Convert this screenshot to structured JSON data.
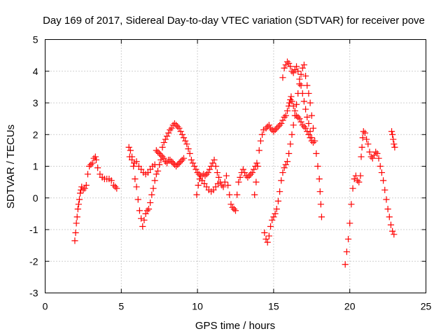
{
  "chart_data": {
    "type": "scatter",
    "title": "Day 169 of 2017, Sidereal Day-to-day VTEC variation (SDTVAR) for receiver pove",
    "xlabel": "GPS time / hours",
    "ylabel": "SDTVAR / TECUs",
    "xlim": [
      0,
      25
    ],
    "ylim": [
      -3,
      5
    ],
    "xticks": [
      0,
      5,
      10,
      15,
      20,
      25
    ],
    "yticks": [
      -3,
      -2,
      -1,
      0,
      1,
      2,
      3,
      4,
      5
    ],
    "grid": true,
    "marker": "plus",
    "color": "#ff0000",
    "series": [
      {
        "points": [
          [
            1.95,
            -1.35
          ],
          [
            2.0,
            -1.1
          ],
          [
            2.05,
            -0.8
          ],
          [
            2.1,
            -0.6
          ],
          [
            2.15,
            -0.35
          ],
          [
            2.2,
            -0.2
          ],
          [
            2.25,
            -0.05
          ],
          [
            2.3,
            0.15
          ],
          [
            2.35,
            0.25
          ],
          [
            2.4,
            0.35
          ],
          [
            2.5,
            0.25
          ],
          [
            2.6,
            0.3
          ],
          [
            2.7,
            0.4
          ],
          [
            2.8,
            0.75
          ],
          [
            2.9,
            1.0
          ],
          [
            3.0,
            1.05
          ],
          [
            3.1,
            1.1
          ],
          [
            3.2,
            1.25
          ],
          [
            3.3,
            1.3
          ],
          [
            3.35,
            1.2
          ],
          [
            3.45,
            0.95
          ],
          [
            3.6,
            0.75
          ],
          [
            3.75,
            0.65
          ],
          [
            3.9,
            0.6
          ],
          [
            4.05,
            0.6
          ],
          [
            4.2,
            0.6
          ],
          [
            4.35,
            0.55
          ],
          [
            4.5,
            0.4
          ],
          [
            4.6,
            0.35
          ],
          [
            4.7,
            0.3
          ],
          [
            5.5,
            1.6
          ],
          [
            5.6,
            1.5
          ],
          [
            5.7,
            1.3
          ],
          [
            5.8,
            1.0
          ],
          [
            5.9,
            0.6
          ],
          [
            6.0,
            0.35
          ],
          [
            6.1,
            -0.05
          ],
          [
            6.2,
            -0.4
          ],
          [
            6.3,
            -0.65
          ],
          [
            6.4,
            -0.9
          ],
          [
            6.5,
            -0.7
          ],
          [
            6.6,
            -0.5
          ],
          [
            6.7,
            -0.4
          ],
          [
            6.8,
            -0.35
          ],
          [
            6.9,
            -0.15
          ],
          [
            7.0,
            0.1
          ],
          [
            7.1,
            0.3
          ],
          [
            7.2,
            0.55
          ],
          [
            7.3,
            0.75
          ],
          [
            7.4,
            0.85
          ],
          [
            7.5,
            1.05
          ],
          [
            7.6,
            1.2
          ],
          [
            7.7,
            1.3
          ],
          [
            7.8,
            1.25
          ],
          [
            7.9,
            1.15
          ],
          [
            8.0,
            1.1
          ],
          [
            8.1,
            1.2
          ],
          [
            8.2,
            1.2
          ],
          [
            8.3,
            1.15
          ],
          [
            8.4,
            1.1
          ],
          [
            8.5,
            1.05
          ],
          [
            8.6,
            1.0
          ],
          [
            8.7,
            1.05
          ],
          [
            8.8,
            1.1
          ],
          [
            8.9,
            1.15
          ],
          [
            9.0,
            1.2
          ],
          [
            9.1,
            1.25
          ],
          [
            5.55,
            1.3
          ],
          [
            5.7,
            1.2
          ],
          [
            5.85,
            1.1
          ],
          [
            6.0,
            1.15
          ],
          [
            6.15,
            1.0
          ],
          [
            6.3,
            0.9
          ],
          [
            6.45,
            0.8
          ],
          [
            6.6,
            0.75
          ],
          [
            6.75,
            0.8
          ],
          [
            6.9,
            0.9
          ],
          [
            7.05,
            1.0
          ],
          [
            7.2,
            1.05
          ],
          [
            7.3,
            1.5
          ],
          [
            7.4,
            1.45
          ],
          [
            7.5,
            1.4
          ],
          [
            7.6,
            1.35
          ],
          [
            7.7,
            1.6
          ],
          [
            7.8,
            1.75
          ],
          [
            7.9,
            1.85
          ],
          [
            8.0,
            1.95
          ],
          [
            8.1,
            2.05
          ],
          [
            8.2,
            2.15
          ],
          [
            8.3,
            2.2
          ],
          [
            8.4,
            2.3
          ],
          [
            8.5,
            2.35
          ],
          [
            8.6,
            2.3
          ],
          [
            8.7,
            2.25
          ],
          [
            8.8,
            2.2
          ],
          [
            8.9,
            2.1
          ],
          [
            9.0,
            2.0
          ],
          [
            9.1,
            1.9
          ],
          [
            9.2,
            1.8
          ],
          [
            9.3,
            1.7
          ],
          [
            9.4,
            1.55
          ],
          [
            9.5,
            1.4
          ],
          [
            9.6,
            1.2
          ],
          [
            9.7,
            1.1
          ],
          [
            9.8,
            1.0
          ],
          [
            9.9,
            0.9
          ],
          [
            10.0,
            0.8
          ],
          [
            10.1,
            0.75
          ],
          [
            10.2,
            0.7
          ],
          [
            10.3,
            0.7
          ],
          [
            10.4,
            0.75
          ],
          [
            10.5,
            0.7
          ],
          [
            10.6,
            0.75
          ],
          [
            10.7,
            0.8
          ],
          [
            10.8,
            0.9
          ],
          [
            10.9,
            1.0
          ],
          [
            11.0,
            1.1
          ],
          [
            11.1,
            1.2
          ],
          [
            11.2,
            1.0
          ],
          [
            11.3,
            0.8
          ],
          [
            11.4,
            0.65
          ],
          [
            9.95,
            0.1
          ],
          [
            10.05,
            0.4
          ],
          [
            10.15,
            0.6
          ],
          [
            10.3,
            0.55
          ],
          [
            10.45,
            0.45
          ],
          [
            10.6,
            0.35
          ],
          [
            10.75,
            0.25
          ],
          [
            10.9,
            0.2
          ],
          [
            11.05,
            0.25
          ],
          [
            11.2,
            0.35
          ],
          [
            11.35,
            0.45
          ],
          [
            11.5,
            0.5
          ],
          [
            11.6,
            0.4
          ],
          [
            11.7,
            0.35
          ],
          [
            11.8,
            0.5
          ],
          [
            11.9,
            0.7
          ],
          [
            12.0,
            0.4
          ],
          [
            12.1,
            0.1
          ],
          [
            12.2,
            -0.2
          ],
          [
            12.3,
            -0.3
          ],
          [
            12.4,
            -0.35
          ],
          [
            12.5,
            -0.4
          ],
          [
            12.6,
            0.1
          ],
          [
            12.7,
            0.5
          ],
          [
            12.8,
            0.65
          ],
          [
            12.9,
            0.8
          ],
          [
            13.0,
            0.9
          ],
          [
            13.1,
            0.8
          ],
          [
            13.2,
            0.7
          ],
          [
            13.3,
            0.65
          ],
          [
            13.4,
            0.7
          ],
          [
            13.5,
            0.75
          ],
          [
            13.6,
            0.8
          ],
          [
            13.7,
            0.9
          ],
          [
            13.8,
            1.0
          ],
          [
            13.9,
            1.1
          ],
          [
            13.75,
            0.1
          ],
          [
            13.85,
            0.5
          ],
          [
            13.95,
            1.0
          ],
          [
            14.05,
            1.5
          ],
          [
            14.15,
            1.8
          ],
          [
            14.25,
            2.0
          ],
          [
            14.35,
            2.15
          ],
          [
            14.5,
            2.2
          ],
          [
            14.6,
            2.25
          ],
          [
            14.7,
            2.3
          ],
          [
            14.8,
            2.2
          ],
          [
            14.9,
            2.15
          ],
          [
            15.0,
            2.1
          ],
          [
            15.1,
            2.15
          ],
          [
            15.2,
            2.2
          ],
          [
            15.3,
            2.25
          ],
          [
            15.4,
            2.3
          ],
          [
            15.5,
            2.35
          ],
          [
            15.6,
            2.45
          ],
          [
            15.7,
            2.55
          ],
          [
            15.8,
            2.6
          ],
          [
            15.9,
            2.75
          ],
          [
            16.0,
            2.9
          ],
          [
            16.05,
            3.0
          ],
          [
            16.1,
            3.1
          ],
          [
            16.15,
            3.2
          ],
          [
            16.2,
            3.05
          ],
          [
            16.3,
            2.9
          ],
          [
            16.4,
            2.75
          ],
          [
            16.5,
            2.6
          ],
          [
            16.6,
            2.55
          ],
          [
            16.7,
            2.5
          ],
          [
            16.8,
            2.4
          ],
          [
            16.9,
            2.3
          ],
          [
            17.0,
            2.25
          ],
          [
            17.1,
            2.2
          ],
          [
            17.2,
            2.1
          ],
          [
            17.3,
            2.0
          ],
          [
            17.4,
            1.9
          ],
          [
            17.5,
            1.8
          ],
          [
            14.4,
            -1.1
          ],
          [
            14.5,
            -1.3
          ],
          [
            14.6,
            -1.4
          ],
          [
            14.7,
            -1.2
          ],
          [
            14.8,
            -0.9
          ],
          [
            14.9,
            -0.7
          ],
          [
            15.0,
            -0.6
          ],
          [
            15.1,
            -0.5
          ],
          [
            15.2,
            -0.35
          ],
          [
            15.3,
            -0.1
          ],
          [
            15.4,
            0.2
          ],
          [
            15.5,
            0.55
          ],
          [
            15.6,
            0.8
          ],
          [
            15.7,
            0.95
          ],
          [
            15.8,
            1.05
          ],
          [
            15.9,
            1.15
          ],
          [
            16.0,
            1.4
          ],
          [
            16.1,
            1.7
          ],
          [
            16.2,
            2.0
          ],
          [
            16.3,
            2.3
          ],
          [
            16.4,
            2.6
          ],
          [
            16.5,
            2.95
          ],
          [
            16.6,
            3.3
          ],
          [
            16.7,
            3.6
          ],
          [
            16.8,
            3.9
          ],
          [
            16.9,
            4.1
          ],
          [
            17.0,
            4.2
          ],
          [
            17.1,
            3.85
          ],
          [
            17.2,
            3.55
          ],
          [
            17.3,
            3.3
          ],
          [
            17.4,
            3.0
          ],
          [
            17.5,
            2.6
          ],
          [
            17.6,
            2.2
          ],
          [
            17.7,
            1.8
          ],
          [
            17.8,
            1.4
          ],
          [
            17.9,
            1.0
          ],
          [
            18.0,
            0.6
          ],
          [
            18.05,
            0.2
          ],
          [
            18.1,
            -0.2
          ],
          [
            18.15,
            -0.6
          ],
          [
            15.6,
            3.8
          ],
          [
            15.7,
            4.1
          ],
          [
            15.8,
            4.2
          ],
          [
            15.9,
            4.3
          ],
          [
            16.0,
            4.25
          ],
          [
            16.1,
            4.15
          ],
          [
            16.2,
            4.0
          ],
          [
            16.3,
            3.95
          ],
          [
            16.4,
            4.05
          ],
          [
            16.5,
            4.15
          ],
          [
            16.6,
            4.0
          ],
          [
            16.7,
            3.75
          ],
          [
            16.8,
            3.55
          ],
          [
            16.9,
            3.3
          ],
          [
            17.0,
            3.05
          ],
          [
            17.1,
            2.8
          ],
          [
            17.2,
            2.55
          ],
          [
            17.3,
            2.35
          ],
          [
            17.4,
            2.1
          ],
          [
            17.5,
            1.9
          ],
          [
            17.6,
            1.75
          ],
          [
            19.7,
            -2.1
          ],
          [
            19.8,
            -1.7
          ],
          [
            19.9,
            -1.3
          ],
          [
            20.0,
            -0.8
          ],
          [
            20.1,
            -0.2
          ],
          [
            20.2,
            0.3
          ],
          [
            20.3,
            0.6
          ],
          [
            20.4,
            0.7
          ],
          [
            20.5,
            0.55
          ],
          [
            20.6,
            0.5
          ],
          [
            20.7,
            0.7
          ],
          [
            20.75,
            1.3
          ],
          [
            20.8,
            1.6
          ],
          [
            20.85,
            1.9
          ],
          [
            20.9,
            2.1
          ],
          [
            21.0,
            2.05
          ],
          [
            21.1,
            1.85
          ],
          [
            21.2,
            1.7
          ],
          [
            21.3,
            1.45
          ],
          [
            21.4,
            1.3
          ],
          [
            21.5,
            1.25
          ],
          [
            21.6,
            1.35
          ],
          [
            21.7,
            1.45
          ],
          [
            21.8,
            1.4
          ],
          [
            21.9,
            1.25
          ],
          [
            22.0,
            1.0
          ],
          [
            22.1,
            0.8
          ],
          [
            22.2,
            0.55
          ],
          [
            22.3,
            0.25
          ],
          [
            22.4,
            -0.05
          ],
          [
            22.5,
            -0.35
          ],
          [
            22.6,
            -0.6
          ],
          [
            22.7,
            -0.85
          ],
          [
            22.8,
            -1.05
          ],
          [
            22.9,
            -1.15
          ],
          [
            22.75,
            2.1
          ],
          [
            22.8,
            2.0
          ],
          [
            22.85,
            1.85
          ],
          [
            22.9,
            1.7
          ],
          [
            22.95,
            1.6
          ]
        ]
      }
    ]
  }
}
